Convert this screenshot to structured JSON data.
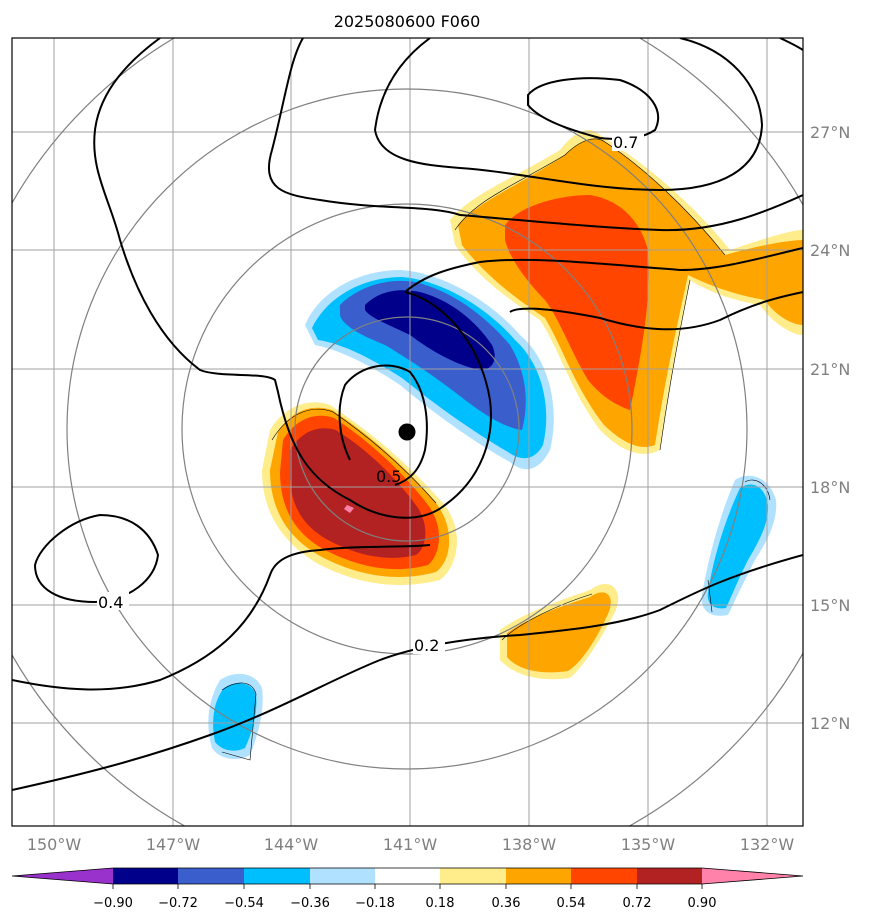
{
  "title": "2025080600 F060",
  "colors": {
    "frame": "#000000",
    "grid": "#a0a0a0",
    "range_ring": "#808080",
    "contour": "#000000",
    "tick_label": "#808080"
  },
  "map": {
    "lon_ticks": [
      {
        "value": -150,
        "label": "150°W"
      },
      {
        "value": -147,
        "label": "147°W"
      },
      {
        "value": -144,
        "label": "144°W"
      },
      {
        "value": -141,
        "label": "141°W"
      },
      {
        "value": -138,
        "label": "138°W"
      },
      {
        "value": -135,
        "label": "135°W"
      },
      {
        "value": -132,
        "label": "132°W"
      }
    ],
    "lat_ticks": [
      {
        "value": 12,
        "label": "12°N"
      },
      {
        "value": 15,
        "label": "15°N"
      },
      {
        "value": 18,
        "label": "18°N"
      },
      {
        "value": 21,
        "label": "21°N"
      },
      {
        "value": 24,
        "label": "24°N"
      },
      {
        "value": 27,
        "label": "27°N"
      }
    ],
    "extent": {
      "lon_min": -151.1,
      "lon_max": -131.1,
      "lat_min": 9.5,
      "lat_max": 29.4
    },
    "storm_center": {
      "lon": -141.0,
      "lat": 19.4
    },
    "contour_labels": [
      "0.7",
      "0.5",
      "0.4",
      "0.2"
    ]
  },
  "colorbar": {
    "levels": [
      "−0.90",
      "−0.72",
      "−0.54",
      "−0.36",
      "−0.18",
      "0.18",
      "0.36",
      "0.54",
      "0.72",
      "0.90"
    ],
    "colors": [
      "#9932cc",
      "#00008b",
      "#3a5fcd",
      "#00bfff",
      "#b0e2ff",
      "#ffffff",
      "#ffec8b",
      "#ffa500",
      "#ff4500",
      "#b22222",
      "#ff82ab"
    ]
  }
}
